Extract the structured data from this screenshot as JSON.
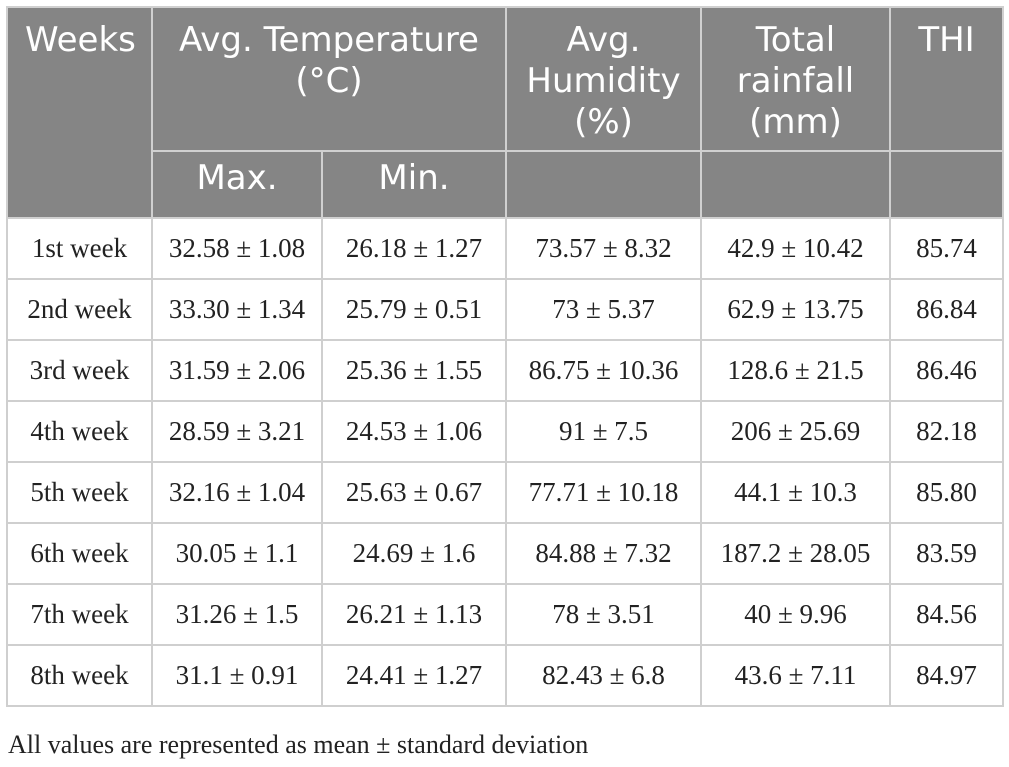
{
  "table": {
    "headers": {
      "weeks": "Weeks",
      "temperature": [
        "Avg. Temperature",
        "(°C)"
      ],
      "max": "Max.",
      "min": "Min.",
      "humidity": [
        "Avg.",
        "Humidity",
        "(%)"
      ],
      "rainfall": [
        "Total",
        "rainfall",
        "(mm)"
      ],
      "thi": "THI"
    },
    "rows": [
      {
        "week": "1st week",
        "max": "32.58 ± 1.08",
        "min": "26.18 ± 1.27",
        "humidity": "73.57 ± 8.32",
        "rainfall": "42.9 ± 10.42",
        "thi": "85.74"
      },
      {
        "week": "2nd week",
        "max": "33.30 ± 1.34",
        "min": "25.79 ± 0.51",
        "humidity": "73 ± 5.37",
        "rainfall": "62.9 ± 13.75",
        "thi": "86.84"
      },
      {
        "week": "3rd week",
        "max": "31.59 ± 2.06",
        "min": "25.36 ± 1.55",
        "humidity": "86.75 ± 10.36",
        "rainfall": "128.6 ± 21.5",
        "thi": "86.46"
      },
      {
        "week": "4th week",
        "max": "28.59 ± 3.21",
        "min": "24.53 ± 1.06",
        "humidity": "91 ± 7.5",
        "rainfall": "206 ± 25.69",
        "thi": "82.18"
      },
      {
        "week": "5th week",
        "max": "32.16 ± 1.04",
        "min": "25.63 ± 0.67",
        "humidity": "77.71 ± 10.18",
        "rainfall": "44.1 ± 10.3",
        "thi": "85.80"
      },
      {
        "week": "6th week",
        "max": "30.05 ± 1.1",
        "min": "24.69 ± 1.6",
        "humidity": "84.88 ± 7.32",
        "rainfall": "187.2 ± 28.05",
        "thi": "83.59"
      },
      {
        "week": "7th week",
        "max": "31.26 ± 1.5",
        "min": "26.21 ± 1.13",
        "humidity": "78 ± 3.51",
        "rainfall": "40 ± 9.96",
        "thi": "84.56"
      },
      {
        "week": "8th week",
        "max": "31.1 ± 0.91",
        "min": "24.41 ± 1.27",
        "humidity": "82.43 ± 6.8",
        "rainfall": "43.6 ± 7.11",
        "thi": "84.97"
      }
    ]
  },
  "footnote": "All values are represented as mean ± standard deviation",
  "colors": {
    "header_bg": "#858585",
    "header_text": "#ffffff",
    "body_text": "#222222",
    "border": "#cfcfcf"
  }
}
